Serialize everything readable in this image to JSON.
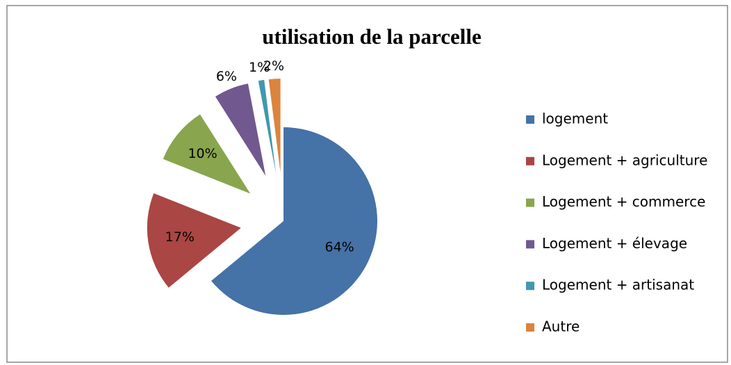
{
  "chart_data": {
    "type": "pie",
    "title": "utilisation de la parcelle",
    "categories": [
      "logement",
      "Logement + agriculture",
      "Logement + commerce",
      "Logement + élevage",
      "Logement + artisanat",
      "Autre"
    ],
    "values": [
      64,
      17,
      10,
      6,
      1,
      2
    ],
    "value_labels": [
      "64%",
      "17%",
      "10%",
      "6%",
      "1%",
      "2%"
    ],
    "colors": [
      "#4572a7",
      "#aa4643",
      "#89a54e",
      "#71588f",
      "#4198af",
      "#db843d"
    ],
    "legend": "right"
  }
}
